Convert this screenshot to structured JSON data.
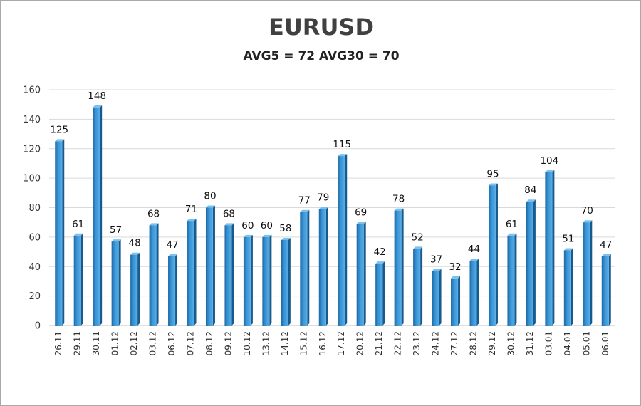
{
  "chart_data": {
    "type": "bar",
    "title": "EURUSD",
    "subtitle": "AVG5 = 72 AVG30 = 70",
    "xlabel": "",
    "ylabel": "",
    "ylim": [
      0,
      160
    ],
    "yticks": [
      0,
      20,
      40,
      60,
      80,
      100,
      120,
      140,
      160
    ],
    "grid": true,
    "legend": "none",
    "bar_color": "#2f86c8",
    "categories": [
      "26.11",
      "29.11",
      "30.11",
      "01.12",
      "02.12",
      "03.12",
      "06.12",
      "07.12",
      "08.12",
      "09.12",
      "10.12",
      "13.12",
      "14.12",
      "15.12",
      "16.12",
      "17.12",
      "20.12",
      "21.12",
      "22.12",
      "23.12",
      "24.12",
      "27.12",
      "28.12",
      "29.12",
      "30.12",
      "31.12",
      "03.01",
      "04.01",
      "05.01",
      "06.01"
    ],
    "values": [
      125,
      61,
      148,
      57,
      48,
      68,
      47,
      71,
      80,
      68,
      60,
      60,
      58,
      77,
      79,
      115,
      69,
      42,
      78,
      52,
      37,
      32,
      44,
      95,
      61,
      84,
      104,
      51,
      70,
      47
    ],
    "data_labels": [
      "125",
      "61",
      "148",
      "57",
      "48",
      "68",
      "47",
      "71",
      "80",
      "68",
      "60",
      "60",
      "58",
      "77",
      "79",
      "115",
      "69",
      "42",
      "78",
      "52",
      "37",
      "32",
      "44",
      "95",
      "61",
      "84",
      "104",
      "51",
      "70",
      "47"
    ]
  }
}
